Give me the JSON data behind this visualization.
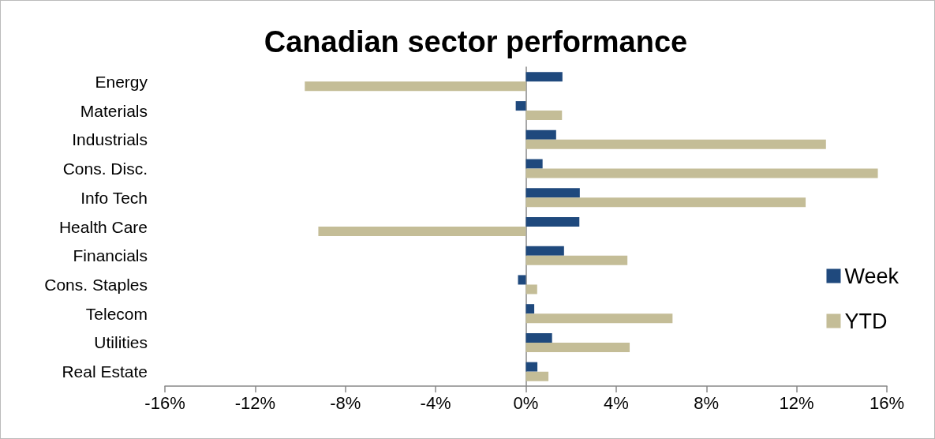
{
  "chart_data": {
    "type": "bar",
    "title": "Canadian sector performance",
    "orientation": "horizontal",
    "categories": [
      "Energy",
      "Materials",
      "Industrials",
      "Cons. Disc.",
      "Info Tech",
      "Health Care",
      "Financials",
      "Cons. Staples",
      "Telecom",
      "Utilities",
      "Real Estate"
    ],
    "series": [
      {
        "name": "Week",
        "color": "#1f497d",
        "values": [
          1.62,
          -0.45,
          1.34,
          0.74,
          2.39,
          2.37,
          1.69,
          -0.35,
          0.37,
          1.16,
          0.51
        ]
      },
      {
        "name": "YTD",
        "color": "#c4bd97",
        "values": [
          -9.8,
          1.6,
          13.3,
          15.6,
          12.4,
          -9.2,
          4.5,
          0.5,
          6.5,
          4.6,
          1.0
        ]
      }
    ],
    "xlim": [
      -16,
      16
    ],
    "xticks": [
      {
        "value": -16,
        "label": "-16%"
      },
      {
        "value": -12,
        "label": "-12%"
      },
      {
        "value": -8,
        "label": "-8%"
      },
      {
        "value": -4,
        "label": "-4%"
      },
      {
        "value": 0,
        "label": "0%"
      },
      {
        "value": 4,
        "label": "4%"
      },
      {
        "value": 8,
        "label": "8%"
      },
      {
        "value": 12,
        "label": "12%"
      },
      {
        "value": 16,
        "label": "16%"
      }
    ],
    "legend": "right"
  }
}
